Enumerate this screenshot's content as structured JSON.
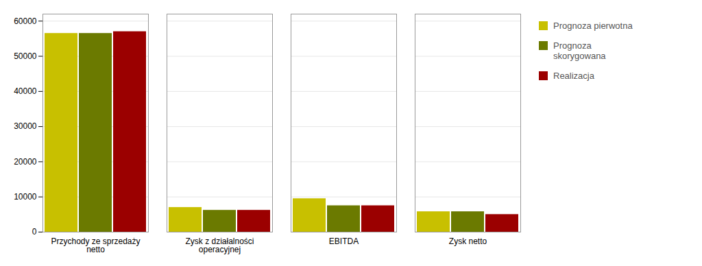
{
  "chart_data": {
    "type": "bar",
    "categories": [
      "Przychody ze sprzedaży\nnetto",
      "Zysk z działalności\noperacyjnej",
      "EBITDA",
      "Zysk netto"
    ],
    "series": [
      {
        "name": "Prognoza pierwotna",
        "values": [
          56500,
          7000,
          9500,
          5800
        ],
        "color": "#c8c000"
      },
      {
        "name": "Prognoza\nskorygowana",
        "values": [
          56500,
          6200,
          7500,
          5800
        ],
        "color": "#6b7a00"
      },
      {
        "name": "Realizacja",
        "values": [
          57000,
          6200,
          7500,
          5000
        ],
        "color": "#9b0000"
      }
    ],
    "ylim": [
      0,
      62000
    ],
    "yticks": [
      0,
      10000,
      20000,
      30000,
      40000,
      50000,
      60000
    ],
    "grid": true,
    "legend": "right"
  }
}
